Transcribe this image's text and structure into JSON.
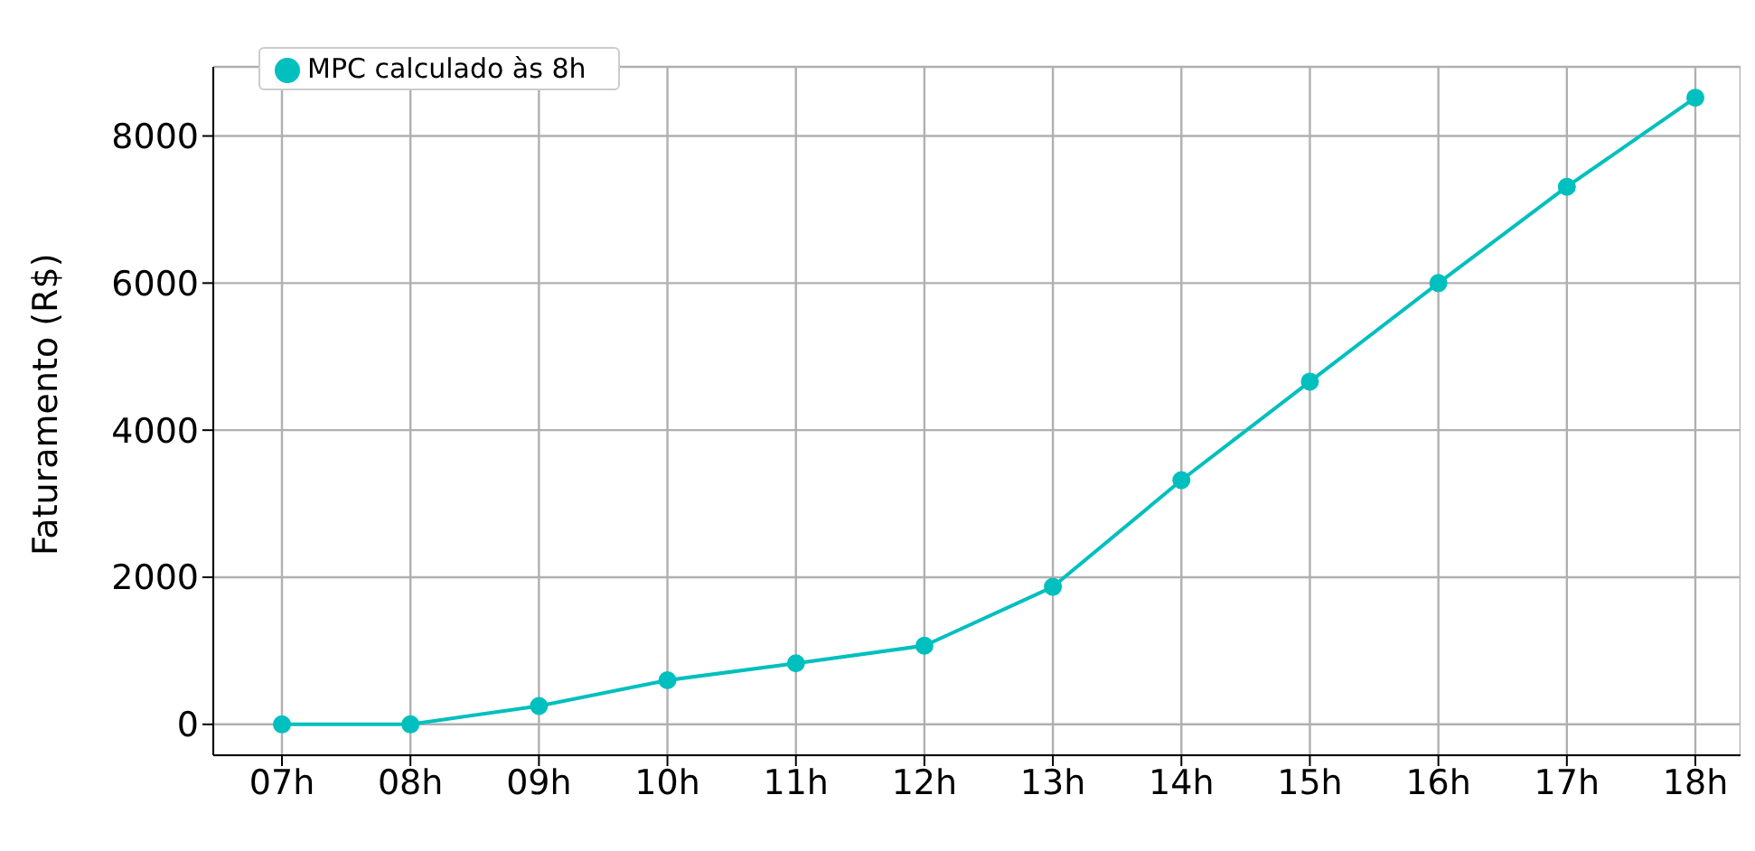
{
  "chart_data": {
    "type": "line",
    "ylabel": "Faturamento (R$)",
    "categories": [
      "07h",
      "08h",
      "09h",
      "10h",
      "11h",
      "12h",
      "13h",
      "14h",
      "15h",
      "16h",
      "17h",
      "18h"
    ],
    "series": [
      {
        "name": "MPC calculado às 8h",
        "color": "#00bfbf",
        "values": [
          0,
          0,
          250,
          600,
          830,
          1070,
          1870,
          3320,
          4660,
          6000,
          7310,
          8520
        ]
      }
    ],
    "ylim": [
      -420,
      8940
    ],
    "yticks": [
      0,
      2000,
      4000,
      6000,
      8000
    ],
    "grid": true,
    "legend": "top left",
    "marker": "circle",
    "line_style": "solid"
  }
}
